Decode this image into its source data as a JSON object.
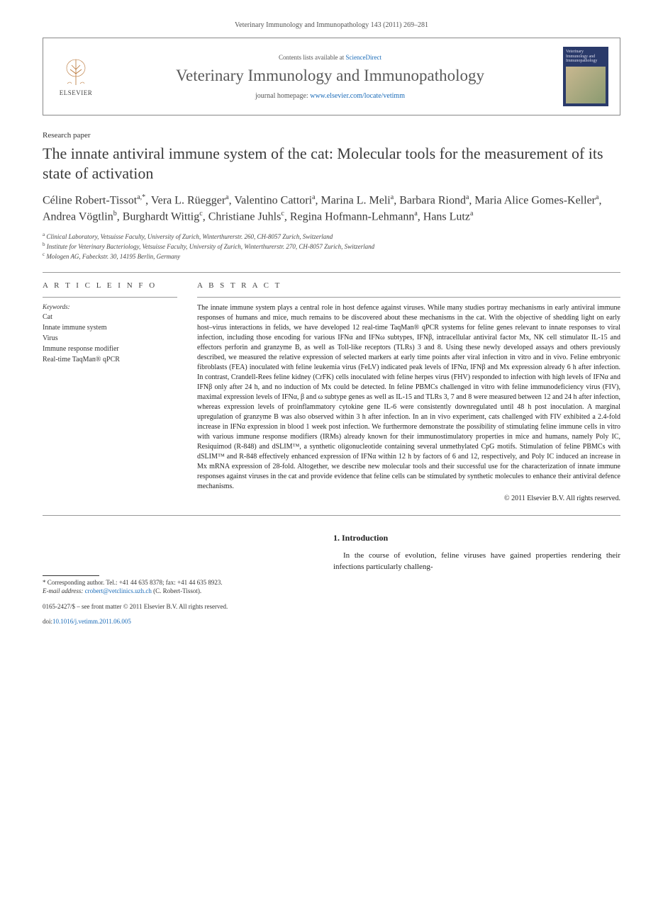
{
  "citation": "Veterinary Immunology and Immunopathology 143 (2011) 269–281",
  "header": {
    "contents_prefix": "Contents lists available at ",
    "contents_link": "ScienceDirect",
    "journal": "Veterinary Immunology and Immunopathology",
    "homepage_prefix": "journal homepage: ",
    "homepage_url": "www.elsevier.com/locate/vetimm",
    "elsevier_label": "ELSEVIER",
    "cover_title": "Veterinary Immunology and Immunopathology"
  },
  "article": {
    "type": "Research paper",
    "title": "The innate antiviral immune system of the cat: Molecular tools for the measurement of its state of activation"
  },
  "authors_html": "Céline Robert-Tissot<sup>a,*</sup>, Vera L. Rüegger<sup>a</sup>, Valentino Cattori<sup>a</sup>, Marina L. Meli<sup>a</sup>, Barbara Riond<sup>a</sup>, Maria Alice Gomes-Keller<sup>a</sup>, Andrea Vögtlin<sup>b</sup>, Burghardt Wittig<sup>c</sup>, Christiane Juhls<sup>c</sup>, Regina Hofmann-Lehmann<sup>a</sup>, Hans Lutz<sup>a</sup>",
  "affiliations": [
    {
      "marker": "a",
      "text": "Clinical Laboratory, Vetsuisse Faculty, University of Zurich, Winterthurerstr. 260, CH-8057 Zurich, Switzerland"
    },
    {
      "marker": "b",
      "text": "Institute for Veterinary Bacteriology, Vetsuisse Faculty, University of Zurich, Winterthurerstr. 270, CH-8057 Zurich, Switzerland"
    },
    {
      "marker": "c",
      "text": "Mologen AG, Fabeckstr. 30, 14195 Berlin, Germany"
    }
  ],
  "info": {
    "heading": "A R T I C L E   I N F O",
    "keywords_label": "Keywords:",
    "keywords": [
      "Cat",
      "Innate immune system",
      "Virus",
      "Immune response modifier",
      "Real-time TaqMan® qPCR"
    ]
  },
  "abstract": {
    "heading": "A B S T R A C T",
    "text": "The innate immune system plays a central role in host defence against viruses. While many studies portray mechanisms in early antiviral immune responses of humans and mice, much remains to be discovered about these mechanisms in the cat. With the objective of shedding light on early host–virus interactions in felids, we have developed 12 real-time TaqMan® qPCR systems for feline genes relevant to innate responses to viral infection, including those encoding for various IFNα and IFNω subtypes, IFNβ, intracellular antiviral factor Mx, NK cell stimulator IL-15 and effectors perforin and granzyme B, as well as Toll-like receptors (TLRs) 3 and 8. Using these newly developed assays and others previously described, we measured the relative expression of selected markers at early time points after viral infection in vitro and in vivo. Feline embryonic fibroblasts (FEA) inoculated with feline leukemia virus (FeLV) indicated peak levels of IFNα, IFNβ and Mx expression already 6 h after infection. In contrast, Crandell-Rees feline kidney (CrFK) cells inoculated with feline herpes virus (FHV) responded to infection with high levels of IFNα and IFNβ only after 24 h, and no induction of Mx could be detected. In feline PBMCs challenged in vitro with feline immunodeficiency virus (FIV), maximal expression levels of IFNα, β and ω subtype genes as well as IL-15 and TLRs 3, 7 and 8 were measured between 12 and 24 h after infection, whereas expression levels of proinflammatory cytokine gene IL-6 were consistently downregulated until 48 h post inoculation. A marginal upregulation of granzyme B was also observed within 3 h after infection. In an in vivo experiment, cats challenged with FIV exhibited a 2.4-fold increase in IFNα expression in blood 1 week post infection. We furthermore demonstrate the possibility of stimulating feline immune cells in vitro with various immune response modifiers (IRMs) already known for their immunostimulatory properties in mice and humans, namely Poly IC, Resiquimod (R-848) and dSLIM™, a synthetic oligonucleotide containing several unmethylated CpG motifs. Stimulation of feline PBMCs with dSLIM™ and R-848 effectively enhanced expression of IFNα within 12 h by factors of 6 and 12, respectively, and Poly IC induced an increase in Mx mRNA expression of 28-fold. Altogether, we describe new molecular tools and their successful use for the characterization of innate immune responses against viruses in the cat and provide evidence that feline cells can be stimulated by synthetic molecules to enhance their antiviral defence mechanisms.",
    "copyright": "© 2011 Elsevier B.V. All rights reserved."
  },
  "intro": {
    "heading": "1. Introduction",
    "text": "In the course of evolution, feline viruses have gained properties rendering their infections particularly challeng-"
  },
  "footer": {
    "corresponding": "* Corresponding author. Tel.: +41 44 635 8378; fax: +41 44 635 8923.",
    "email_label": "E-mail address: ",
    "email": "crobert@vetclinics.uzh.ch",
    "email_suffix": " (C. Robert-Tissot).",
    "issn": "0165-2427/$ – see front matter © 2011 Elsevier B.V. All rights reserved.",
    "doi_label": "doi:",
    "doi": "10.1016/j.vetimm.2011.06.005"
  }
}
